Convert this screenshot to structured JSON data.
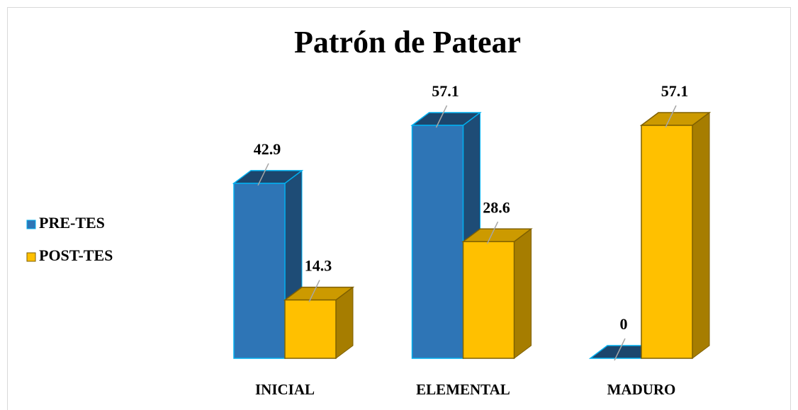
{
  "chart_data": {
    "type": "bar3d",
    "title": "Patrón de Patear",
    "categories": [
      "INICIAL",
      "ELEMENTAL",
      "MADURO"
    ],
    "series": [
      {
        "name": "PRE-TES",
        "color": "#2e75b6",
        "values": [
          42.9,
          57.1,
          0
        ]
      },
      {
        "name": "POST-TES",
        "color": "#ffc000",
        "values": [
          14.3,
          28.6,
          57.1
        ]
      }
    ],
    "legend": "left"
  }
}
